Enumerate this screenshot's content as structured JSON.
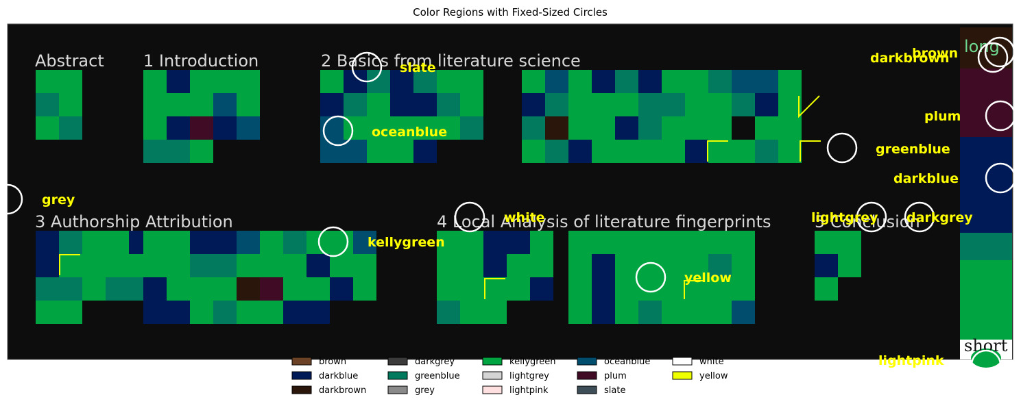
{
  "title": "Color Regions with Fixed-Sized Circles",
  "palette": {
    "background": "#0d0d0d",
    "brown": "#6b4226",
    "darkblue": "#001a57",
    "darkbrown": "#2b160c",
    "darkgrey": "#3b3b3b",
    "greenblue": "#017a5e",
    "grey": "#8a8a8a",
    "kellygreen": "#00a542",
    "lightgrey": "#d4d4d4",
    "lightpink": "#ffe0e0",
    "oceanblue": "#014d6e",
    "plum": "#3f0b25",
    "slate": "#3d4e58",
    "white": "#ffffff",
    "yellow": "#f0ff00",
    "annotation": "#ffff00"
  },
  "sections": [
    "Abstract",
    "1 Introduction",
    "2 Basics from literature science",
    "3 Authorship Attribution",
    "4 Local Analysis of literature fingerprints",
    "5 Conclusion"
  ],
  "side_labels": {
    "top": "long",
    "bottom": "short"
  },
  "chart_data": {
    "type": "other",
    "title": "Color Regions with Fixed-Sized Circles",
    "annotations": [
      "brown",
      "darkbrown",
      "slate",
      "oceanblue",
      "plum",
      "greenblue",
      "darkblue",
      "grey",
      "white",
      "lightgrey",
      "darkgrey",
      "kellygreen",
      "yellow",
      "lightpink"
    ],
    "legend": {
      "placement": "bottom-center",
      "entries": [
        {
          "name": "brown",
          "color": "#6b4226"
        },
        {
          "name": "darkblue",
          "color": "#001a57"
        },
        {
          "name": "darkbrown",
          "color": "#2b160c"
        },
        {
          "name": "darkgrey",
          "color": "#3b3b3b"
        },
        {
          "name": "greenblue",
          "color": "#017a5e"
        },
        {
          "name": "grey",
          "color": "#8a8a8a"
        },
        {
          "name": "kellygreen",
          "color": "#00a542"
        },
        {
          "name": "lightgrey",
          "color": "#d4d4d4"
        },
        {
          "name": "lightpink",
          "color": "#ffe0e0"
        },
        {
          "name": "oceanblue",
          "color": "#014d6e"
        },
        {
          "name": "plum",
          "color": "#3f0b25"
        },
        {
          "name": "slate",
          "color": "#3d4e58"
        },
        {
          "name": "white",
          "color": "#ffffff"
        },
        {
          "name": "yellow",
          "color": "#f0ff00"
        }
      ]
    },
    "axes": "off"
  }
}
